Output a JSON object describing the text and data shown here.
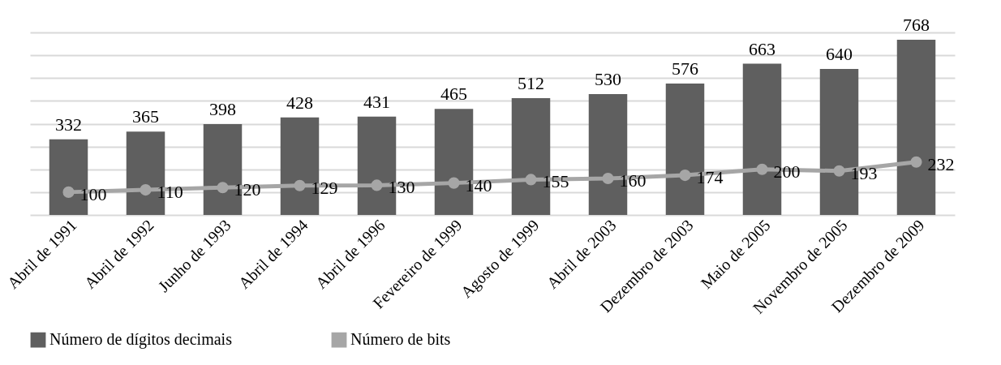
{
  "chart_data": {
    "type": "bar",
    "categories": [
      "Abril de 1991",
      "Abril de 1992",
      "Junho de 1993",
      "Abril de 1994",
      "Abril de 1996",
      "Fevereiro de 1999",
      "Agosto de 1999",
      "Abril de 2003",
      "Dezembro de 2003",
      "Maio de 2005",
      "Novembro de 2005",
      "Dezembro de 2009"
    ],
    "series": [
      {
        "name": "Número de dígitos decimais",
        "color": "#5f5f5f",
        "values": [
          332,
          365,
          398,
          428,
          431,
          465,
          512,
          530,
          576,
          663,
          640,
          768
        ]
      },
      {
        "name": "Número de bits",
        "type": "line",
        "color": "#a6a6a6",
        "values": [
          100,
          110,
          120,
          129,
          130,
          140,
          155,
          160,
          174,
          200,
          193,
          232
        ]
      }
    ],
    "tick_labels": "x",
    "grid": "y",
    "legend": "bottom",
    "data_labels": true,
    "marker": "circle",
    "line_style": "solid"
  }
}
